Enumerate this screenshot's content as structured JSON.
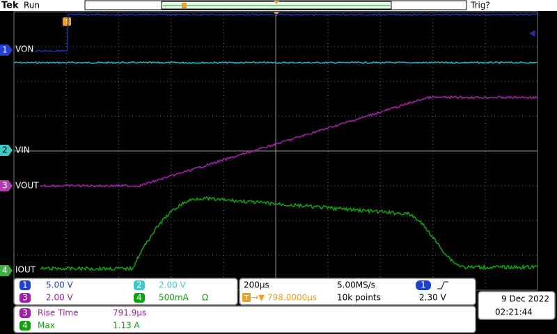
{
  "header": {
    "brand": "Tek",
    "status": "Run",
    "trigger_status": "Trig?"
  },
  "channel_labels": [
    "VON",
    "VIN",
    "VOUT",
    "IOUT"
  ],
  "vertical_settings": [
    {
      "channel": "1",
      "scale": "5.00 V"
    },
    {
      "channel": "2",
      "scale": "2.00 V"
    },
    {
      "channel": "3",
      "scale": "2.00 V"
    },
    {
      "channel": "4",
      "scale": "500mA",
      "coupling": "Ω"
    }
  ],
  "horizontal": {
    "scale": "200µs",
    "sample_rate": "5.00MS/s",
    "position": "798.0000µs",
    "record": "10k points"
  },
  "trigger": {
    "channel": "1",
    "level": "2.30 V"
  },
  "measurements": [
    {
      "channel": "3",
      "name": "Rise Time",
      "value": "791.9µs"
    },
    {
      "channel": "4",
      "name": "Max",
      "value": "1.13 A"
    }
  ],
  "datetime": {
    "date": "9 Dec 2022",
    "time": "02:21:44"
  }
}
